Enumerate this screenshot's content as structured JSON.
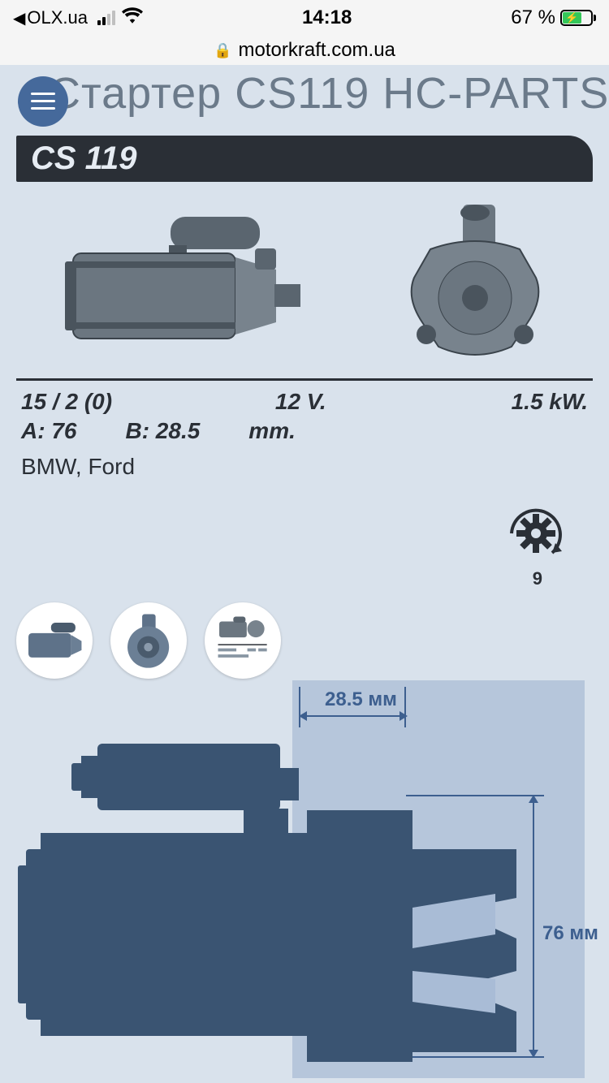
{
  "statusbar": {
    "back_app": "OLX.ua",
    "time": "14:18",
    "battery_pct": "67 %",
    "battery_fill_width": "67%",
    "battery_fill_color": "#34c759"
  },
  "browser": {
    "domain": "motorkraft.com.ua"
  },
  "page": {
    "title": "Стартер CS119 HC-PARTS"
  },
  "product": {
    "model_label": "CS 119",
    "spec_ratio": "15 / 2 (0)",
    "voltage": "12 V.",
    "power": "1.5 kW.",
    "dim_A_label": "A: 76",
    "dim_B_label": "B: 28.5",
    "dim_unit": "mm.",
    "brands": "BMW, Ford",
    "teeth_count": "9"
  },
  "diagram": {
    "dim_top": "28.5 мм",
    "dim_right": "76 мм",
    "shade_color": "#a9bcd6",
    "silhouette_color": "#3a5472",
    "label_color": "#3d5f8f"
  },
  "colors": {
    "page_bg": "#d9e2ec",
    "banner_bg": "#2a2f36",
    "menu_btn": "#45699b",
    "title_color": "#6b7a8a"
  }
}
